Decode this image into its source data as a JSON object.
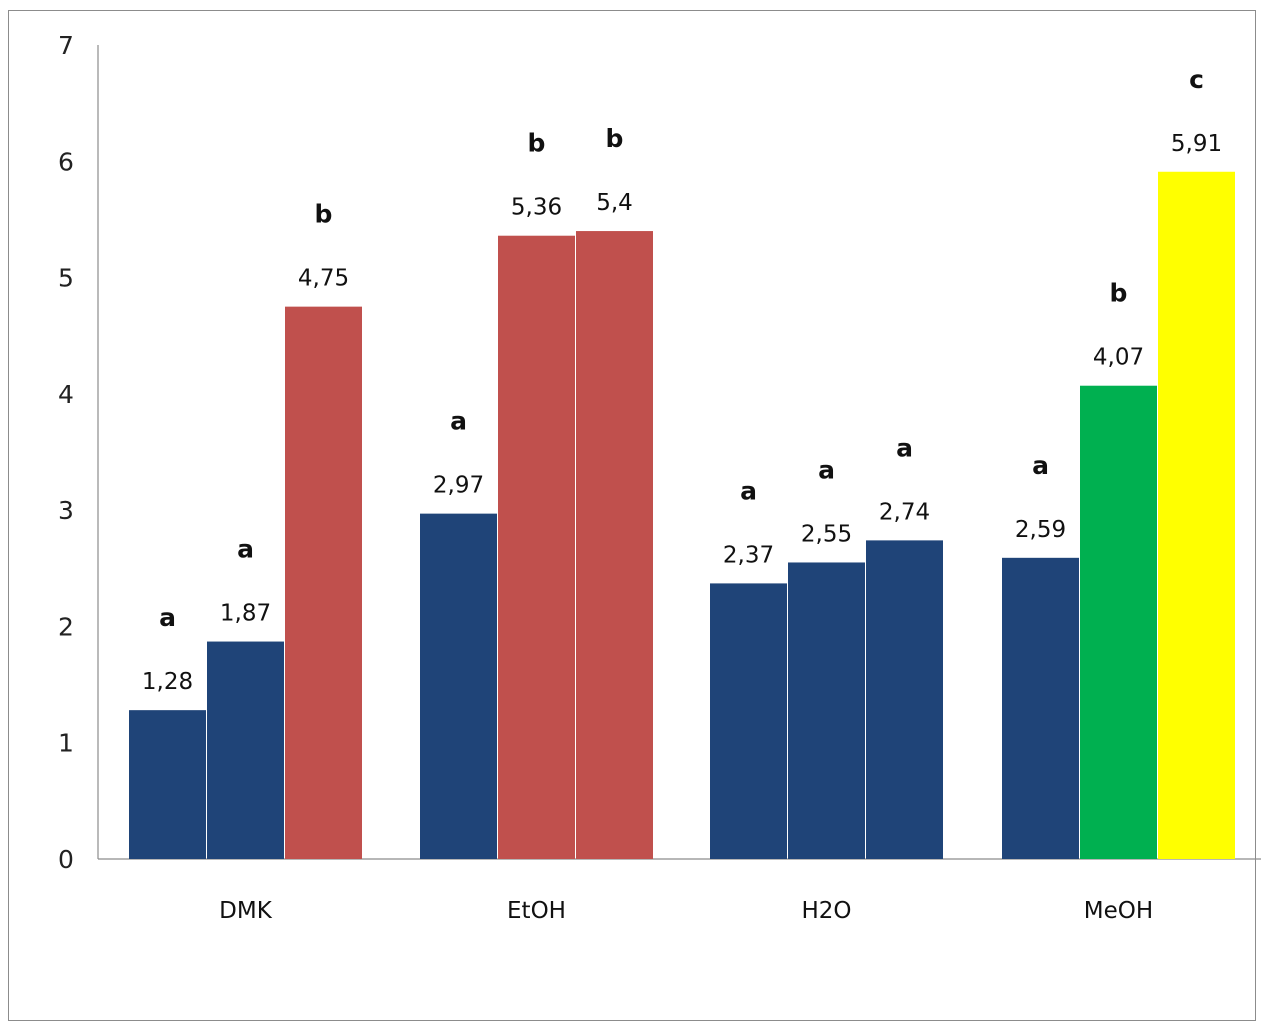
{
  "chart_data": {
    "type": "bar",
    "categories": [
      "DMK",
      "EtOH",
      "H2O",
      "MeOH"
    ],
    "ylim": [
      0,
      7
    ],
    "yticks": [
      "0",
      "1",
      "2",
      "3",
      "4",
      "5",
      "6",
      "7"
    ],
    "grid": false,
    "legend": "none",
    "bars": [
      [
        {
          "value": 1.28,
          "label": "1,28",
          "letter": "a",
          "color": "#1f4478"
        },
        {
          "value": 1.87,
          "label": "1,87",
          "letter": "a",
          "color": "#1f4478"
        },
        {
          "value": 4.75,
          "label": "4,75",
          "letter": "b",
          "color": "#c0504d"
        }
      ],
      [
        {
          "value": 2.97,
          "label": "2,97",
          "letter": "a",
          "color": "#1f4478"
        },
        {
          "value": 5.36,
          "label": "5,36",
          "letter": "b",
          "color": "#c0504d"
        },
        {
          "value": 5.4,
          "label": "5,4",
          "letter": "b",
          "color": "#c0504d"
        }
      ],
      [
        {
          "value": 2.37,
          "label": "2,37",
          "letter": "a",
          "color": "#1f4478"
        },
        {
          "value": 2.55,
          "label": "2,55",
          "letter": "a",
          "color": "#1f4478"
        },
        {
          "value": 2.74,
          "label": "2,74",
          "letter": "a",
          "color": "#1f4478"
        }
      ],
      [
        {
          "value": 2.59,
          "label": "2,59",
          "letter": "a",
          "color": "#1f4478"
        },
        {
          "value": 4.07,
          "label": "4,07",
          "letter": "b",
          "color": "#00b050"
        },
        {
          "value": 5.91,
          "label": "5,91",
          "letter": "c",
          "color": "#ffff00"
        }
      ]
    ]
  }
}
